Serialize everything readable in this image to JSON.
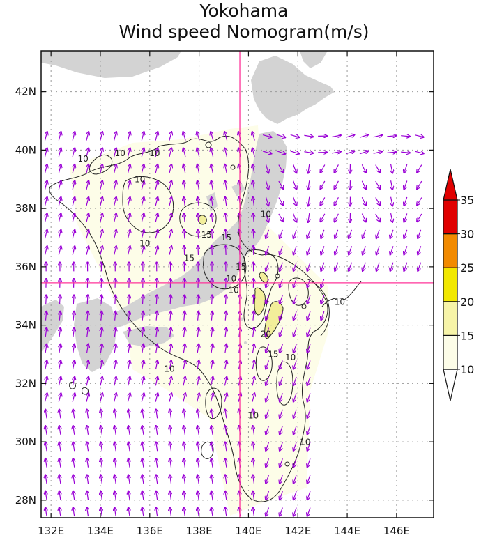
{
  "title": "Yokohama",
  "subtitle": "Wind speed Nomogram(m/s)",
  "map": {
    "lon_range": [
      131.6,
      147.5
    ],
    "lat_range": [
      27.4,
      43.4
    ],
    "lon_ticks": [
      {
        "value": 132,
        "label": "132E"
      },
      {
        "value": 134,
        "label": "134E"
      },
      {
        "value": 136,
        "label": "136E"
      },
      {
        "value": 138,
        "label": "138E"
      },
      {
        "value": 140,
        "label": "140E"
      },
      {
        "value": 142,
        "label": "142E"
      },
      {
        "value": 144,
        "label": "144E"
      },
      {
        "value": 146,
        "label": "146E"
      }
    ],
    "lat_ticks": [
      {
        "value": 28,
        "label": "28N"
      },
      {
        "value": 30,
        "label": "30N"
      },
      {
        "value": 32,
        "label": "32N"
      },
      {
        "value": 34,
        "label": "34N"
      },
      {
        "value": 36,
        "label": "36N"
      },
      {
        "value": 38,
        "label": "38N"
      },
      {
        "value": 40,
        "label": "40N"
      },
      {
        "value": 42,
        "label": "42N"
      }
    ],
    "grid": "dotted",
    "crosshair": {
      "lon": 139.65,
      "lat": 35.45,
      "color": "#ff3399"
    },
    "land_color": "#d3d3d3",
    "vector_color": "#9a00d6",
    "contour_labels": [
      {
        "text": "10",
        "lon": 133.3,
        "lat": 39.6
      },
      {
        "text": "10",
        "lon": 134.8,
        "lat": 39.8
      },
      {
        "text": "10",
        "lon": 136.2,
        "lat": 39.8
      },
      {
        "text": "10",
        "lon": 135.6,
        "lat": 38.9
      },
      {
        "text": "10",
        "lon": 135.8,
        "lat": 36.7
      },
      {
        "text": "15",
        "lon": 137.6,
        "lat": 36.2
      },
      {
        "text": "15",
        "lon": 138.3,
        "lat": 37.0
      },
      {
        "text": "15",
        "lon": 139.1,
        "lat": 36.9
      },
      {
        "text": "10",
        "lon": 140.7,
        "lat": 37.7
      },
      {
        "text": "15",
        "lon": 139.7,
        "lat": 35.9
      },
      {
        "text": "10",
        "lon": 139.3,
        "lat": 35.5
      },
      {
        "text": "10",
        "lon": 139.4,
        "lat": 35.1
      },
      {
        "text": "10",
        "lon": 143.7,
        "lat": 34.7
      },
      {
        "text": "20",
        "lon": 140.7,
        "lat": 33.6
      },
      {
        "text": "15",
        "lon": 141.0,
        "lat": 32.9
      },
      {
        "text": "10",
        "lon": 141.7,
        "lat": 32.8
      },
      {
        "text": "10",
        "lon": 136.8,
        "lat": 32.4
      },
      {
        "text": "10",
        "lon": 140.2,
        "lat": 30.8
      },
      {
        "text": "10",
        "lon": 142.3,
        "lat": 29.9
      }
    ]
  },
  "colorbar": {
    "levels": [
      10,
      15,
      20,
      25,
      30,
      35
    ],
    "labels": [
      "10",
      "15",
      "20",
      "25",
      "30",
      "35"
    ],
    "colors": [
      "#ffffff",
      "#fdfde8",
      "#f7f4a8",
      "#f2e800",
      "#f28a00",
      "#e00000"
    ]
  }
}
